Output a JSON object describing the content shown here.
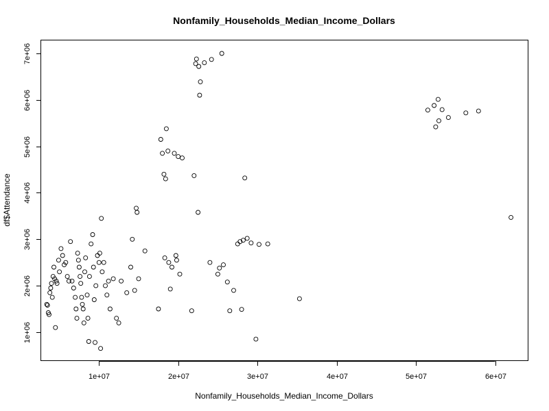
{
  "chart_data": {
    "type": "scatter",
    "title": "Nonfamily_Households_Median_Income_Dollars",
    "xlabel": "Nonfamily_Households_Median_Income_Dollars",
    "ylabel": "df$Attendance",
    "xlim": [
      2700000,
      64200000
    ],
    "ylim": [
      380000,
      7280000
    ],
    "x_ticks": [
      10000000,
      20000000,
      30000000,
      40000000,
      50000000,
      60000000
    ],
    "x_tick_labels": [
      "1e+07",
      "2e+07",
      "3e+07",
      "4e+07",
      "5e+07",
      "6e+07"
    ],
    "y_ticks": [
      1000000,
      2000000,
      3000000,
      4000000,
      5000000,
      6000000,
      7000000
    ],
    "y_tick_labels": [
      "1e+06",
      "2e+06",
      "3e+06",
      "4e+06",
      "5e+06",
      "6e+06",
      "7e+06"
    ],
    "grid": false,
    "legend": "none",
    "points": [
      [
        3400000,
        1600000
      ],
      [
        3500000,
        1580000
      ],
      [
        3600000,
        1420000
      ],
      [
        3700000,
        1380000
      ],
      [
        3800000,
        1850000
      ],
      [
        3900000,
        1950000
      ],
      [
        4000000,
        2050000
      ],
      [
        4100000,
        1750000
      ],
      [
        4200000,
        2200000
      ],
      [
        4300000,
        2400000
      ],
      [
        4400000,
        2150000
      ],
      [
        4500000,
        1100000
      ],
      [
        4600000,
        2100000
      ],
      [
        4700000,
        2050000
      ],
      [
        4900000,
        2550000
      ],
      [
        5000000,
        2300000
      ],
      [
        5200000,
        2800000
      ],
      [
        5400000,
        2650000
      ],
      [
        5600000,
        2450000
      ],
      [
        5800000,
        2500000
      ],
      [
        6000000,
        2200000
      ],
      [
        6200000,
        2100000
      ],
      [
        6400000,
        2950000
      ],
      [
        6600000,
        2100000
      ],
      [
        6800000,
        1950000
      ],
      [
        7000000,
        1750000
      ],
      [
        7100000,
        1500000
      ],
      [
        7200000,
        1300000
      ],
      [
        7300000,
        2700000
      ],
      [
        7400000,
        2550000
      ],
      [
        7500000,
        2400000
      ],
      [
        7600000,
        2200000
      ],
      [
        7700000,
        2050000
      ],
      [
        7800000,
        1750000
      ],
      [
        7900000,
        1600000
      ],
      [
        8000000,
        1500000
      ],
      [
        8100000,
        1200000
      ],
      [
        8200000,
        2300000
      ],
      [
        8300000,
        2600000
      ],
      [
        8500000,
        1800000
      ],
      [
        8600000,
        1300000
      ],
      [
        8700000,
        800000
      ],
      [
        8800000,
        2200000
      ],
      [
        9000000,
        2900000
      ],
      [
        9200000,
        3100000
      ],
      [
        9300000,
        2400000
      ],
      [
        9400000,
        1700000
      ],
      [
        9500000,
        780000
      ],
      [
        9600000,
        2000000
      ],
      [
        9800000,
        2650000
      ],
      [
        10000000,
        2500000
      ],
      [
        10100000,
        2700000
      ],
      [
        10200000,
        650000
      ],
      [
        10300000,
        3450000
      ],
      [
        10400000,
        2300000
      ],
      [
        10600000,
        2500000
      ],
      [
        10800000,
        2000000
      ],
      [
        11000000,
        1800000
      ],
      [
        11200000,
        2100000
      ],
      [
        11400000,
        1500000
      ],
      [
        11800000,
        2150000
      ],
      [
        12200000,
        1300000
      ],
      [
        12500000,
        1200000
      ],
      [
        12800000,
        2100000
      ],
      [
        13500000,
        1850000
      ],
      [
        14000000,
        2400000
      ],
      [
        14200000,
        3000000
      ],
      [
        14500000,
        1900000
      ],
      [
        14700000,
        3670000
      ],
      [
        14800000,
        3580000
      ],
      [
        15000000,
        2150000
      ],
      [
        15800000,
        2750000
      ],
      [
        17500000,
        1500000
      ],
      [
        17800000,
        5150000
      ],
      [
        18000000,
        4850000
      ],
      [
        18200000,
        4400000
      ],
      [
        18300000,
        2600000
      ],
      [
        18400000,
        4300000
      ],
      [
        18500000,
        5380000
      ],
      [
        18700000,
        4900000
      ],
      [
        18800000,
        2500000
      ],
      [
        19000000,
        1930000
      ],
      [
        19200000,
        2400000
      ],
      [
        19500000,
        4850000
      ],
      [
        19700000,
        2650000
      ],
      [
        19800000,
        2550000
      ],
      [
        20000000,
        4780000
      ],
      [
        20200000,
        2250000
      ],
      [
        20500000,
        4750000
      ],
      [
        21700000,
        1460000
      ],
      [
        22000000,
        4370000
      ],
      [
        22200000,
        6780000
      ],
      [
        22300000,
        6880000
      ],
      [
        22500000,
        3580000
      ],
      [
        22600000,
        6720000
      ],
      [
        22700000,
        6100000
      ],
      [
        22800000,
        6390000
      ],
      [
        23300000,
        6800000
      ],
      [
        24000000,
        2500000
      ],
      [
        24200000,
        6870000
      ],
      [
        25000000,
        2250000
      ],
      [
        25200000,
        2380000
      ],
      [
        25500000,
        7000000
      ],
      [
        25700000,
        2450000
      ],
      [
        26200000,
        2080000
      ],
      [
        26500000,
        1460000
      ],
      [
        27000000,
        1900000
      ],
      [
        27500000,
        2900000
      ],
      [
        27800000,
        2950000
      ],
      [
        28000000,
        1490000
      ],
      [
        28200000,
        2980000
      ],
      [
        28400000,
        4320000
      ],
      [
        28700000,
        3020000
      ],
      [
        29200000,
        2920000
      ],
      [
        29800000,
        850000
      ],
      [
        30200000,
        2890000
      ],
      [
        31300000,
        2900000
      ],
      [
        35300000,
        1720000
      ],
      [
        51500000,
        5780000
      ],
      [
        52300000,
        5880000
      ],
      [
        52500000,
        5420000
      ],
      [
        52800000,
        6010000
      ],
      [
        52900000,
        5550000
      ],
      [
        53300000,
        5790000
      ],
      [
        54100000,
        5620000
      ],
      [
        56300000,
        5720000
      ],
      [
        57900000,
        5760000
      ],
      [
        62000000,
        3470000
      ]
    ]
  }
}
